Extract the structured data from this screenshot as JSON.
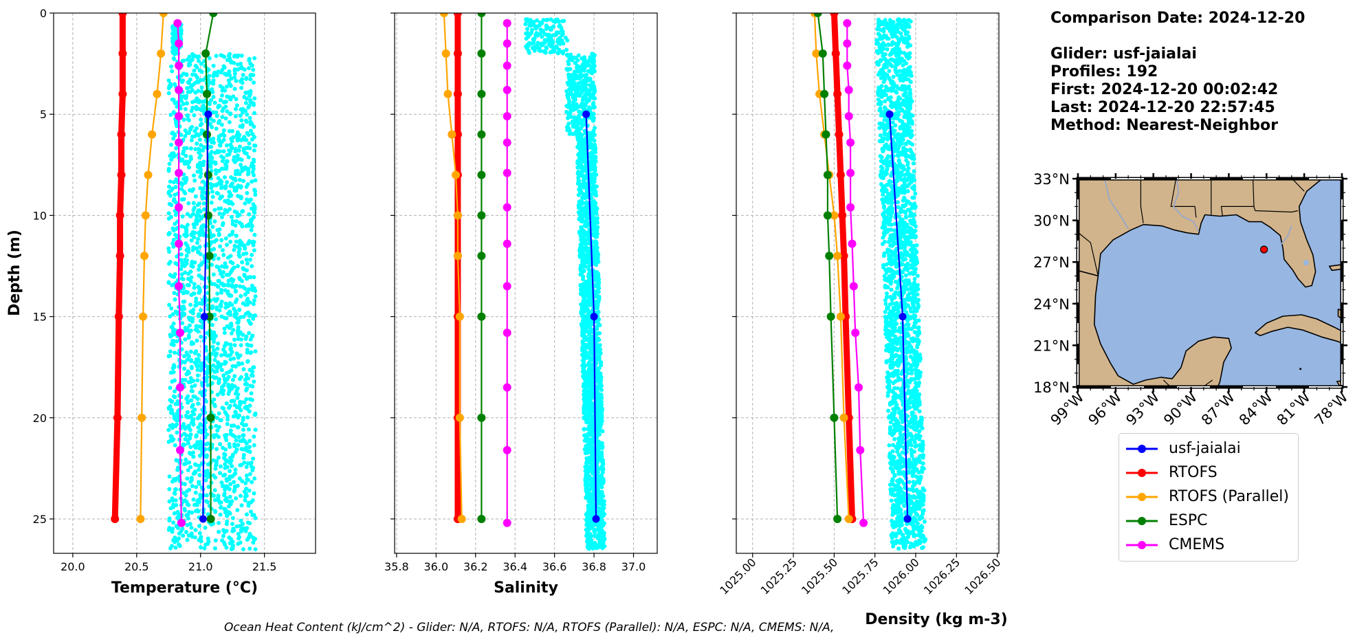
{
  "info": {
    "comparison_date": "Comparison Date: 2024-12-20",
    "glider": "Glider: usf-jaialai",
    "profiles": "Profiles: 192",
    "first": "First: 2024-12-20 00:02:42",
    "last": "Last: 2024-12-20 22:57:45",
    "method": "Method: Nearest-Neighbor"
  },
  "footer": "Ocean Heat Content (kJ/cm^2) - Glider: N/A,  RTOFS: N/A,  RTOFS (Parallel): N/A,  ESPC: N/A,  CMEMS: N/A,",
  "colors": {
    "glider": "#0000ff",
    "glider_scatter": "#00ffff",
    "rtofs": "#ff0000",
    "rtofs_parallel": "#ffa500",
    "espc": "#008000",
    "cmems": "#ff00ff",
    "grid": "#b0b0b0",
    "land": "#d2b48c",
    "ocean": "#97b6e1"
  },
  "legend": [
    {
      "label": "usf-jaialai",
      "color": "#0000ff"
    },
    {
      "label": "RTOFS",
      "color": "#ff0000"
    },
    {
      "label": "RTOFS (Parallel)",
      "color": "#ffa500"
    },
    {
      "label": "ESPC",
      "color": "#008000"
    },
    {
      "label": "CMEMS",
      "color": "#ff00ff"
    }
  ],
  "chart_data": [
    {
      "type": "line",
      "xlabel": "Temperature (°C)",
      "ylabel": "Depth (m)",
      "xlim": [
        19.85,
        21.9
      ],
      "ylim": [
        26.7,
        0
      ],
      "xticks": [
        20.0,
        20.5,
        21.0,
        21.5
      ],
      "yticks": [
        0,
        5,
        10,
        15,
        20,
        25
      ],
      "grid": true,
      "glider_scatter_range": {
        "depth_min": 0.5,
        "depth_max": 26.5,
        "x_min": 20.75,
        "x_max": 21.43
      },
      "series": [
        {
          "name": "usf-jaialai",
          "depth": [
            5,
            15,
            25
          ],
          "values": [
            21.06,
            21.03,
            21.02
          ]
        },
        {
          "name": "RTOFS",
          "depth": [
            0,
            2,
            4,
            6,
            8,
            10,
            12,
            15,
            20,
            25
          ],
          "values": [
            20.39,
            20.39,
            20.39,
            20.38,
            20.38,
            20.37,
            20.37,
            20.36,
            20.35,
            20.33
          ]
        },
        {
          "name": "RTOFS (Parallel)",
          "depth": [
            0,
            2,
            4,
            6,
            8,
            10,
            12,
            15,
            20,
            25
          ],
          "values": [
            20.71,
            20.69,
            20.66,
            20.62,
            20.59,
            20.57,
            20.56,
            20.55,
            20.54,
            20.53
          ]
        },
        {
          "name": "ESPC",
          "depth": [
            0,
            2,
            4,
            6,
            8,
            10,
            12,
            15,
            20,
            25
          ],
          "values": [
            21.1,
            21.04,
            21.05,
            21.05,
            21.06,
            21.06,
            21.07,
            21.07,
            21.08,
            21.08
          ]
        },
        {
          "name": "CMEMS",
          "depth": [
            0.5,
            1.5,
            2.6,
            3.8,
            5.1,
            6.4,
            7.9,
            9.6,
            11.4,
            13.5,
            15.8,
            18.5,
            21.6,
            25.2
          ],
          "values": [
            20.82,
            20.83,
            20.83,
            20.83,
            20.83,
            20.83,
            20.83,
            20.83,
            20.83,
            20.83,
            20.84,
            20.84,
            20.84,
            20.85
          ]
        }
      ]
    },
    {
      "type": "line",
      "xlabel": "Salinity",
      "xlim": [
        35.79,
        37.12
      ],
      "ylim": [
        26.7,
        0
      ],
      "xticks": [
        35.8,
        36.0,
        36.2,
        36.4,
        36.6,
        36.8,
        37.0
      ],
      "grid": true,
      "glider_scatter_range": {
        "depth_min": 0.3,
        "depth_max": 26.5,
        "x_min": 36.45,
        "x_max": 36.85
      },
      "series": [
        {
          "name": "usf-jaialai",
          "depth": [
            5,
            15,
            25
          ],
          "values": [
            36.76,
            36.8,
            36.81
          ]
        },
        {
          "name": "RTOFS",
          "depth": [
            0,
            2,
            4,
            6,
            8,
            10,
            12,
            15,
            20,
            25
          ],
          "values": [
            36.11,
            36.11,
            36.11,
            36.11,
            36.11,
            36.11,
            36.11,
            36.11,
            36.11,
            36.11
          ]
        },
        {
          "name": "RTOFS (Parallel)",
          "depth": [
            0,
            2,
            4,
            6,
            8,
            10,
            12,
            15,
            20,
            25
          ],
          "values": [
            36.04,
            36.05,
            36.06,
            36.08,
            36.1,
            36.11,
            36.11,
            36.12,
            36.12,
            36.13
          ]
        },
        {
          "name": "ESPC",
          "depth": [
            0,
            2,
            4,
            6,
            8,
            10,
            12,
            15,
            20,
            25
          ],
          "values": [
            36.23,
            36.23,
            36.23,
            36.23,
            36.23,
            36.23,
            36.23,
            36.23,
            36.23,
            36.23
          ]
        },
        {
          "name": "CMEMS",
          "depth": [
            0.5,
            1.5,
            2.6,
            3.8,
            5.1,
            6.4,
            7.9,
            9.6,
            11.4,
            13.5,
            15.8,
            18.5,
            21.6,
            25.2
          ],
          "values": [
            36.36,
            36.36,
            36.36,
            36.36,
            36.36,
            36.36,
            36.36,
            36.36,
            36.36,
            36.36,
            36.36,
            36.36,
            36.36,
            36.36
          ]
        }
      ]
    },
    {
      "type": "line",
      "xlabel": "Density (kg m-3)",
      "xlim": [
        1024.9,
        1026.51
      ],
      "ylim": [
        26.7,
        0
      ],
      "xticks": [
        1025.0,
        1025.25,
        1025.5,
        1025.75,
        1026.0,
        1026.25,
        1026.5
      ],
      "xtick_labels": [
        "1025.00",
        "1025.25",
        "1025.50",
        "1025.75",
        "1026.00",
        "1026.25",
        "1026.50"
      ],
      "grid": true,
      "glider_scatter_range": {
        "depth_min": 0.3,
        "depth_max": 26.5,
        "x_min": 1025.7,
        "x_max": 1026.06
      },
      "series": [
        {
          "name": "usf-jaialai",
          "depth": [
            5,
            15,
            25
          ],
          "values": [
            1025.84,
            1025.92,
            1025.95
          ]
        },
        {
          "name": "RTOFS",
          "depth": [
            0,
            2,
            4,
            6,
            8,
            10,
            12,
            15,
            20,
            25
          ],
          "values": [
            1025.5,
            1025.51,
            1025.52,
            1025.53,
            1025.54,
            1025.55,
            1025.56,
            1025.57,
            1025.59,
            1025.61
          ]
        },
        {
          "name": "RTOFS (Parallel)",
          "depth": [
            0,
            2,
            4,
            6,
            8,
            10,
            12,
            15,
            20,
            25
          ],
          "values": [
            1025.38,
            1025.39,
            1025.41,
            1025.44,
            1025.47,
            1025.5,
            1025.52,
            1025.54,
            1025.56,
            1025.59
          ]
        },
        {
          "name": "ESPC",
          "depth": [
            0,
            2,
            4,
            6,
            8,
            10,
            12,
            15,
            20,
            25
          ],
          "values": [
            1025.4,
            1025.43,
            1025.44,
            1025.45,
            1025.46,
            1025.46,
            1025.47,
            1025.48,
            1025.5,
            1025.52
          ]
        },
        {
          "name": "CMEMS",
          "depth": [
            0.5,
            1.5,
            2.6,
            3.8,
            5.1,
            6.4,
            7.9,
            9.6,
            11.4,
            13.5,
            15.8,
            18.5,
            21.6,
            25.2
          ],
          "values": [
            1025.58,
            1025.58,
            1025.58,
            1025.59,
            1025.59,
            1025.6,
            1025.6,
            1025.6,
            1025.61,
            1025.62,
            1025.63,
            1025.65,
            1025.66,
            1025.68
          ]
        }
      ]
    },
    {
      "type": "map",
      "lon_range": [
        -99,
        -78
      ],
      "lat_range": [
        18,
        33
      ],
      "lat_tick_labels": [
        "33°N",
        "30°N",
        "27°N",
        "24°N",
        "21°N",
        "18°N"
      ],
      "lon_tick_labels": [
        "99°W",
        "96°W",
        "93°W",
        "90°W",
        "87°W",
        "84°W",
        "81°W",
        "78°W"
      ],
      "glider_position": {
        "lon": -84.2,
        "lat": 27.9
      }
    }
  ]
}
